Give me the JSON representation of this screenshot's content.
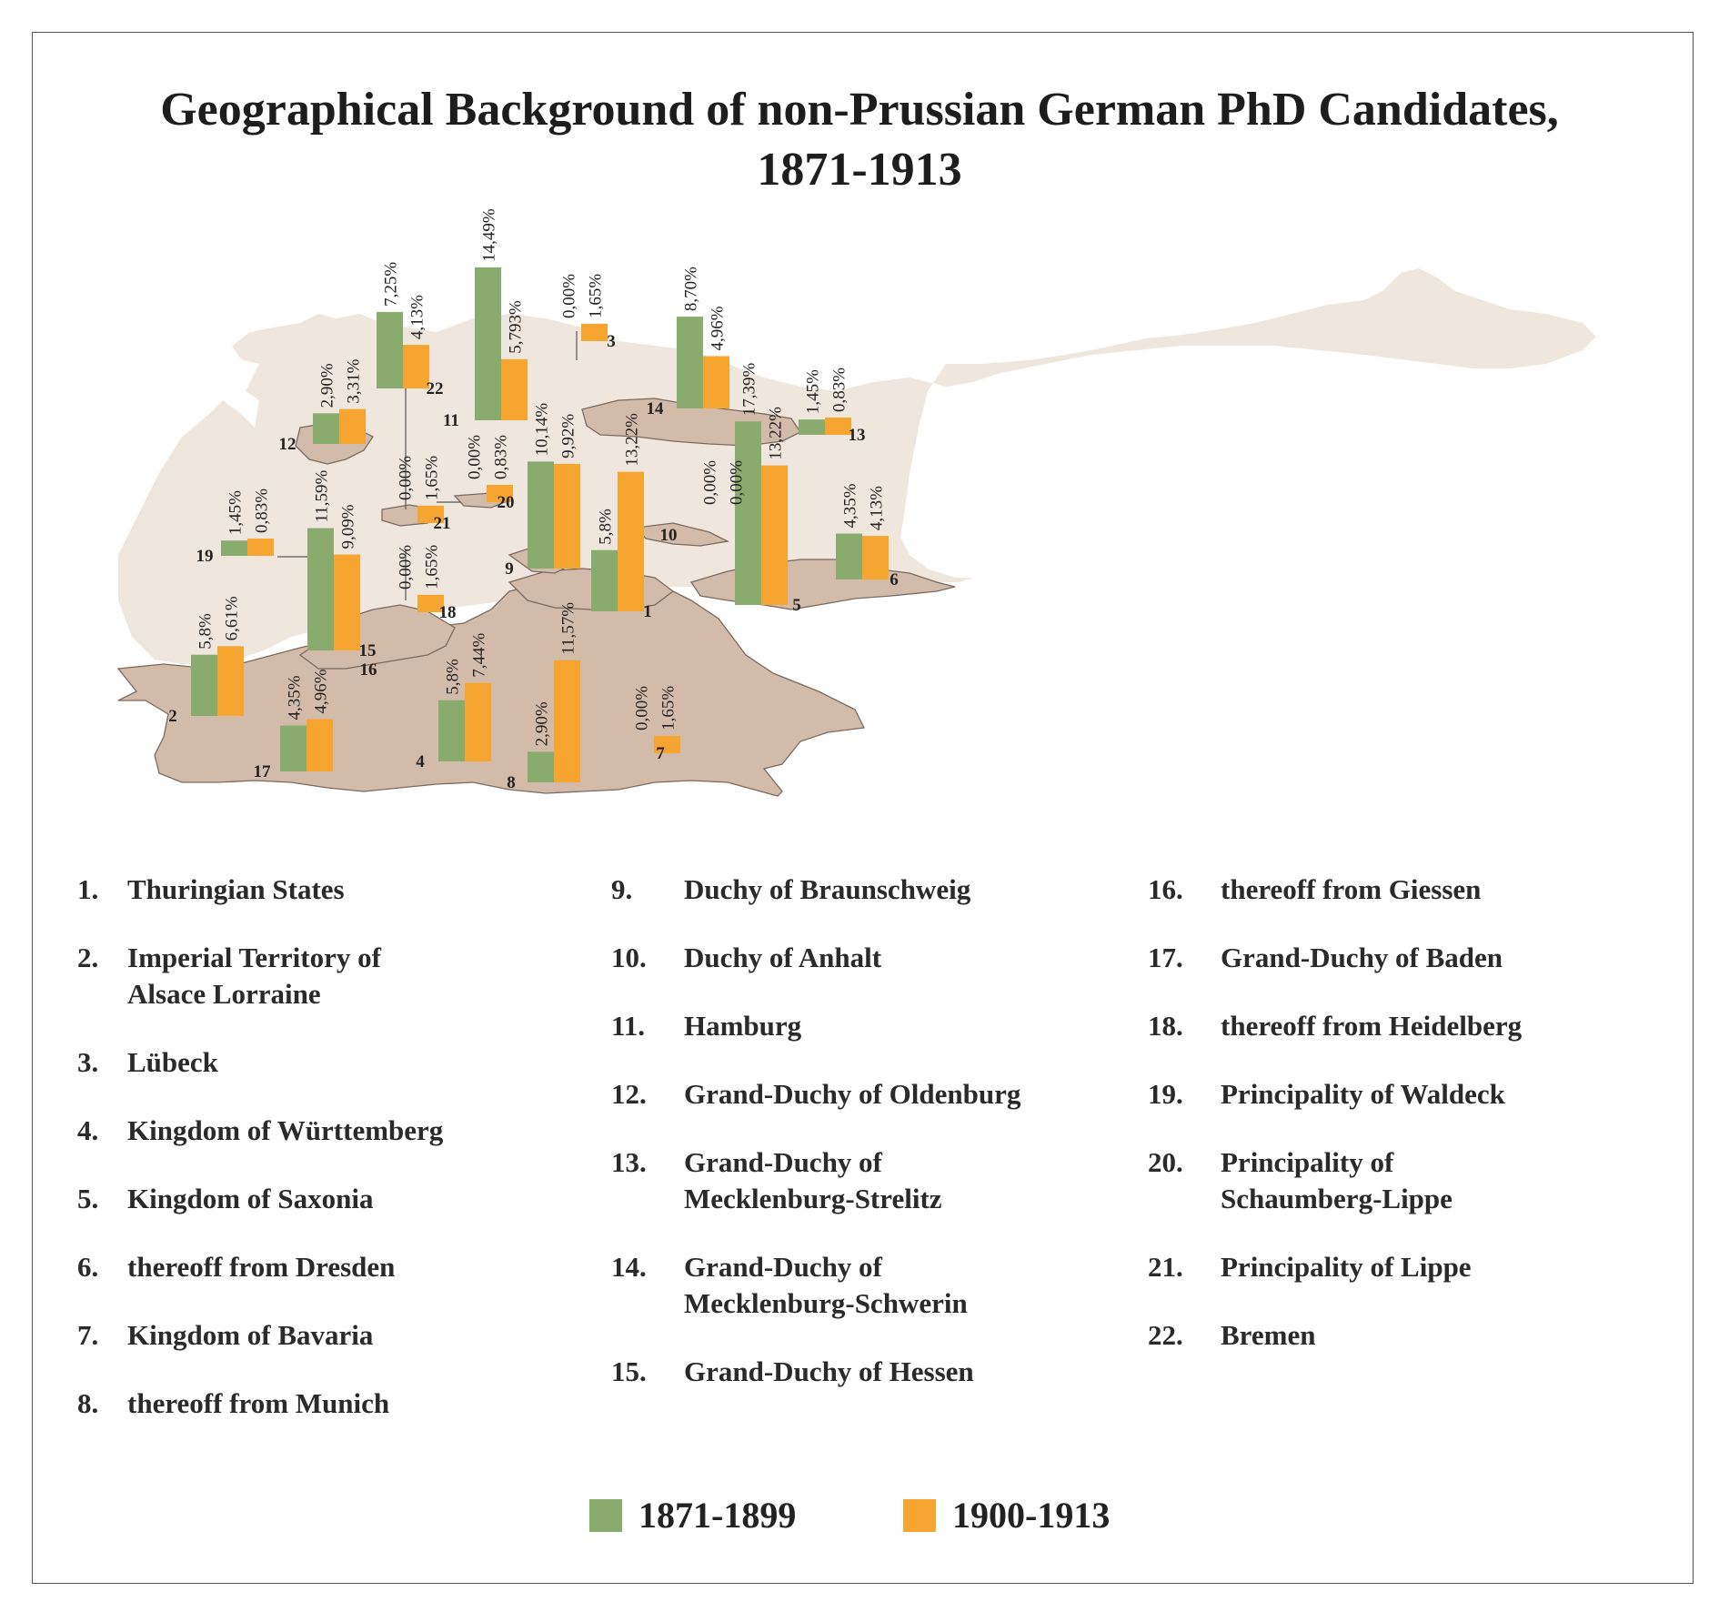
{
  "title_line1": "Geographical Background of non-Prussian German PhD Candidates,",
  "title_line2": "1871-1913",
  "colors": {
    "series1": "#8aab6e",
    "series2": "#f7a531",
    "map_land": "#d2bca9",
    "map_light": "#f0e6de",
    "map_outline": "#7a6a60",
    "bg_prussia": "#efe6de"
  },
  "chart_data": {
    "type": "bar",
    "title": "Geographical Background of non-Prussian German PhD Candidates, 1871-1913",
    "series": [
      {
        "name": "1871-1899",
        "color": "#8aab6e"
      },
      {
        "name": "1900-1913",
        "color": "#f7a531"
      }
    ],
    "regions": [
      {
        "id": "1",
        "name": "Thuringian States",
        "v1": 5.8,
        "l1": "5,8%",
        "v2": 13.22,
        "l2": "13,22%"
      },
      {
        "id": "2",
        "name": "Imperial Territory of Alsace Lorraine",
        "v1": 5.8,
        "l1": "5,8%",
        "v2": 6.61,
        "l2": "6,61%"
      },
      {
        "id": "3",
        "name": "Lübeck",
        "v1": 0.0,
        "l1": "0,00%",
        "v2": 1.65,
        "l2": "1,65%"
      },
      {
        "id": "4",
        "name": "Kingdom of Württemberg",
        "v1": 5.8,
        "l1": "5,8%",
        "v2": 7.44,
        "l2": "7,44%"
      },
      {
        "id": "5",
        "name": "Kingdom of Saxonia",
        "v1": 17.39,
        "l1": "17,39%",
        "v2": 13.22,
        "l2": "13,22%"
      },
      {
        "id": "6",
        "name": "thereoff from Dresden",
        "v1": 4.35,
        "l1": "4,35%",
        "v2": 4.13,
        "l2": "4,13%"
      },
      {
        "id": "7",
        "name": "Kingdom of Bavaria",
        "v1": 0.0,
        "l1": "0,00%",
        "v2": 1.65,
        "l2": "1,65%"
      },
      {
        "id": "8",
        "name": "thereoff from Munich",
        "v1": 2.9,
        "l1": "2,90%",
        "v2": 11.57,
        "l2": "11,57%"
      },
      {
        "id": "9",
        "name": "Duchy of Braunschweig",
        "v1": 10.14,
        "l1": "10,14%",
        "v2": 9.92,
        "l2": "9,92%"
      },
      {
        "id": "10",
        "name": "Duchy of Anhalt",
        "v1": 0.0,
        "l1": "0,00%",
        "v2": 0.0,
        "l2": "0,00%"
      },
      {
        "id": "11",
        "name": "Hamburg",
        "v1": 14.49,
        "l1": "14,49%",
        "v2": 5.793,
        "l2": "5,793%"
      },
      {
        "id": "12",
        "name": "Grand-Duchy of Oldenburg",
        "v1": 2.9,
        "l1": "2,90%",
        "v2": 3.31,
        "l2": "3,31%"
      },
      {
        "id": "13",
        "name": "Grand-Duchy of Mecklenburg-Strelitz",
        "v1": 1.45,
        "l1": "1,45%",
        "v2": 0.83,
        "l2": "0,83%"
      },
      {
        "id": "14",
        "name": "Grand-Duchy of Mecklenburg-Schwerin",
        "v1": 8.7,
        "l1": "8,70%",
        "v2": 4.96,
        "l2": "4,96%"
      },
      {
        "id": "15",
        "name": "Grand-Duchy of Hessen",
        "v1": 11.59,
        "l1": "11,59%",
        "v2": 9.09,
        "l2": "9,09%"
      },
      {
        "id": "16",
        "name": "thereoff from Giessen"
      },
      {
        "id": "17",
        "name": "Grand-Duchy of Baden",
        "v1": 4.35,
        "l1": "4,35%",
        "v2": 4.96,
        "l2": "4,96%"
      },
      {
        "id": "18",
        "name": "thereoff from Heidelberg",
        "v1": 0.0,
        "l1": "0,00%",
        "v2": 1.65,
        "l2": "1,65%"
      },
      {
        "id": "19",
        "name": "Principality of Waldeck",
        "v1": 1.45,
        "l1": "1,45%",
        "v2": 0.83,
        "l2": "0,83%"
      },
      {
        "id": "20",
        "name": "Principality of Schaumberg-Lippe",
        "v1": 0.0,
        "l1": "0,00%",
        "v2": 0.83,
        "l2": "0,83%"
      },
      {
        "id": "21",
        "name": "Principality of Lippe",
        "v1": 0.0,
        "l1": "0,00%",
        "v2": 1.65,
        "l2": "1,65%"
      },
      {
        "id": "22",
        "name": "Bremen",
        "v1": 7.25,
        "l1": "7,25%",
        "v2": 4.13,
        "l2": "4,13%"
      }
    ]
  },
  "legend": {
    "col1": [
      {
        "num": "1.",
        "lines": [
          "Thuringian States"
        ]
      },
      {
        "num": "2.",
        "lines": [
          "Imperial Territory of",
          "Alsace Lorraine"
        ]
      },
      {
        "num": "3.",
        "lines": [
          "Lübeck"
        ]
      },
      {
        "num": "4.",
        "lines": [
          "Kingdom of Württemberg"
        ]
      },
      {
        "num": "5.",
        "lines": [
          "Kingdom of Saxonia"
        ]
      },
      {
        "num": "6.",
        "lines": [
          "thereoff from Dresden"
        ]
      },
      {
        "num": "7.",
        "lines": [
          "Kingdom of Bavaria"
        ]
      },
      {
        "num": "8.",
        "lines": [
          "thereoff from Munich"
        ]
      }
    ],
    "col2": [
      {
        "num": "9.",
        "lines": [
          "Duchy of Braunschweig"
        ]
      },
      {
        "num": "10.",
        "lines": [
          "Duchy of Anhalt"
        ]
      },
      {
        "num": "11.",
        "lines": [
          "Hamburg"
        ]
      },
      {
        "num": "12.",
        "lines": [
          "Grand-Duchy of Oldenburg"
        ]
      },
      {
        "num": "13.",
        "lines": [
          "Grand-Duchy of",
          "Mecklenburg-Strelitz"
        ]
      },
      {
        "num": "14.",
        "lines": [
          "Grand-Duchy of",
          "Mecklenburg-Schwerin"
        ]
      },
      {
        "num": "15.",
        "lines": [
          "Grand-Duchy of Hessen"
        ]
      }
    ],
    "col3": [
      {
        "num": "16.",
        "lines": [
          "thereoff from Giessen"
        ]
      },
      {
        "num": "17.",
        "lines": [
          "Grand-Duchy of Baden"
        ]
      },
      {
        "num": "18.",
        "lines": [
          "thereoff from Heidelberg"
        ]
      },
      {
        "num": "19.",
        "lines": [
          "Principality of Waldeck"
        ]
      },
      {
        "num": "20.",
        "lines": [
          "Principality of",
          "Schaumberg-Lippe"
        ]
      },
      {
        "num": "21.",
        "lines": [
          "Principality of Lippe"
        ]
      },
      {
        "num": "22.",
        "lines": [
          "Bremen"
        ]
      }
    ]
  },
  "series_key": [
    {
      "label": "1871-1899",
      "color": "#8aab6e"
    },
    {
      "label": "1900-1913",
      "color": "#f7a531"
    }
  ]
}
